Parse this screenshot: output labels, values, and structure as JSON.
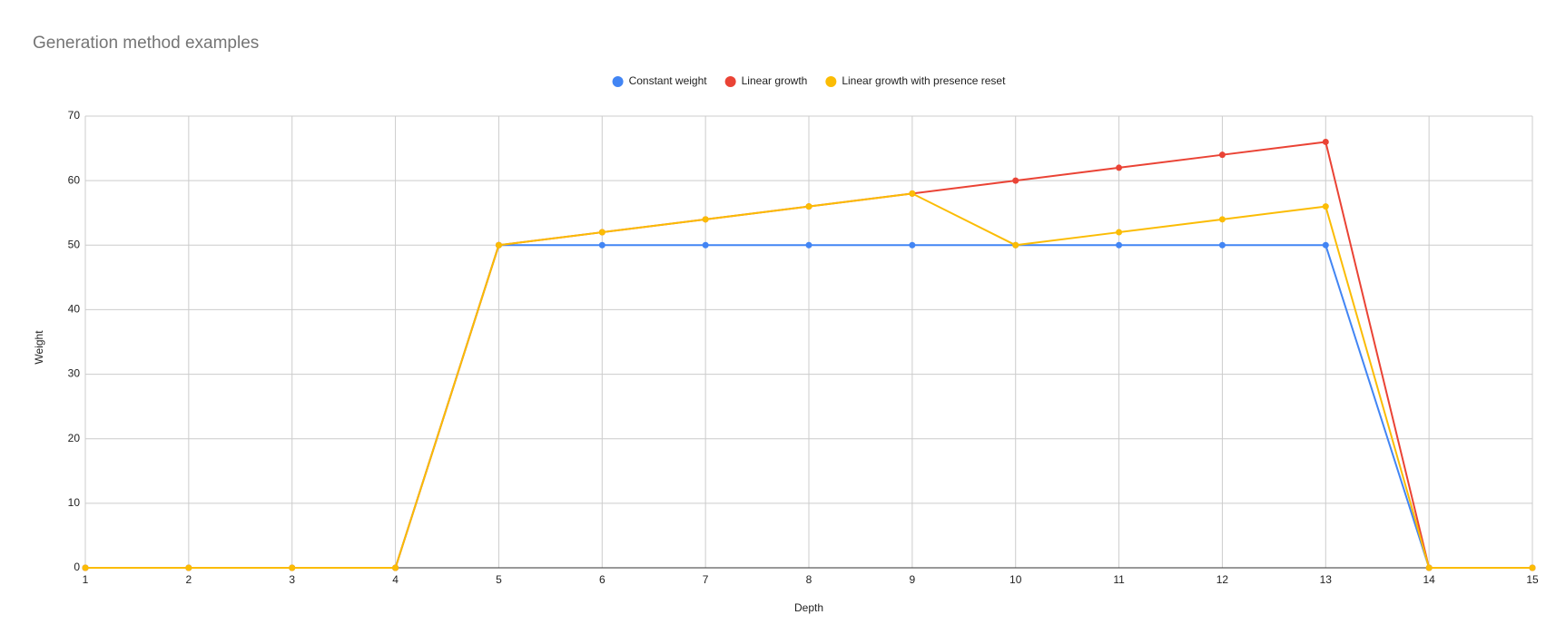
{
  "chart_data": {
    "type": "line",
    "title": "Generation method examples",
    "x_label": "Depth",
    "y_label": "Weight",
    "x": [
      1,
      2,
      3,
      4,
      5,
      6,
      7,
      8,
      9,
      10,
      11,
      12,
      13,
      14,
      15
    ],
    "series": [
      {
        "name": "Constant weight",
        "color": "#4285f4",
        "values": [
          0,
          0,
          0,
          0,
          50,
          50,
          50,
          50,
          50,
          50,
          50,
          50,
          50,
          0,
          0
        ]
      },
      {
        "name": "Linear growth",
        "color": "#ea4335",
        "values": [
          0,
          0,
          0,
          0,
          50,
          52,
          54,
          56,
          58,
          60,
          62,
          64,
          66,
          0,
          0
        ]
      },
      {
        "name": "Linear growth with presence reset",
        "color": "#fbbc04",
        "values": [
          0,
          0,
          0,
          0,
          50,
          52,
          54,
          56,
          58,
          50,
          52,
          54,
          56,
          0,
          0
        ]
      }
    ],
    "xlim": [
      1,
      15
    ],
    "xticks": [
      1,
      2,
      3,
      4,
      5,
      6,
      7,
      8,
      9,
      10,
      11,
      12,
      13,
      14,
      15
    ],
    "ylim": [
      0,
      70
    ],
    "yticks": [
      0,
      10,
      20,
      30,
      40,
      50,
      60,
      70
    ],
    "grid": true,
    "legend": "top"
  }
}
